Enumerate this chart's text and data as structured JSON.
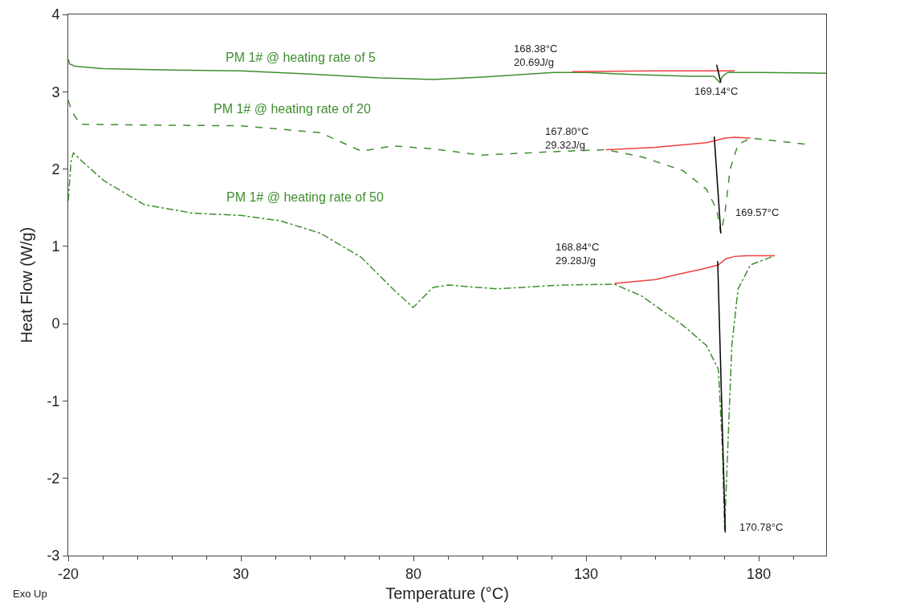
{
  "chart_data": {
    "type": "line",
    "xlabel": "Temperature (°C)",
    "ylabel": "Heat Flow (W/g)",
    "xlim": [
      -20,
      199.5
    ],
    "xticks": [
      -20,
      30,
      80,
      130,
      180
    ],
    "ylim": [
      -3,
      4
    ],
    "yticks": [
      -3,
      -2,
      -1,
      0,
      1,
      2,
      3,
      4
    ],
    "grid": false,
    "legend": false,
    "series": [
      {
        "name": "PM 1# @ heating rate of 5",
        "color": "#3f8f2f",
        "line_style": "solid",
        "x": [
          -20,
          -19.6,
          -18,
          -10,
          10,
          30,
          50,
          70,
          85.7,
          100,
          120.6,
          130,
          145,
          160,
          167,
          168.7,
          169.5,
          171,
          180,
          199.5
        ],
        "values": [
          3.42,
          3.36,
          3.33,
          3.3,
          3.28,
          3.27,
          3.23,
          3.18,
          3.16,
          3.19,
          3.25,
          3.25,
          3.22,
          3.2,
          3.2,
          3.12,
          3.2,
          3.25,
          3.25,
          3.24
        ]
      },
      {
        "name": "PM 1# @ heating rate of 20",
        "color": "#3f8f2f",
        "line_style": "dashed",
        "x": [
          -20,
          -19,
          -16.6,
          0,
          30,
          53,
          65,
          74,
          86,
          99.6,
          123,
          135.7,
          146,
          158,
          164.8,
          167.8,
          169,
          170.2,
          171.7,
          174,
          177.6,
          184,
          193.8
        ],
        "values": [
          2.89,
          2.75,
          2.58,
          2.57,
          2.56,
          2.47,
          2.23,
          2.3,
          2.26,
          2.18,
          2.23,
          2.25,
          2.16,
          1.98,
          1.74,
          1.48,
          1.17,
          1.43,
          2,
          2.32,
          2.4,
          2.37,
          2.32
        ]
      },
      {
        "name": "PM 1# @ heating rate of 50",
        "color": "#3f8f2f",
        "line_style": "dashdot",
        "x": [
          -20,
          -19.2,
          -18.5,
          -16,
          -9.7,
          2,
          16,
          30,
          41.5,
          53,
          64.8,
          74,
          79.9,
          85.7,
          90.3,
          104,
          123,
          138.2,
          146,
          158,
          164.8,
          168.3,
          169.5,
          170.1,
          171,
          172.2,
          174,
          177.6,
          184.6
        ],
        "values": [
          1.59,
          2.1,
          2.21,
          2.1,
          1.85,
          1.54,
          1.43,
          1.4,
          1.33,
          1.17,
          0.86,
          0.45,
          0.21,
          0.47,
          0.5,
          0.45,
          0.5,
          0.51,
          0.36,
          -0.02,
          -0.28,
          -0.59,
          -1.63,
          -2.67,
          -1.63,
          -0.28,
          0.45,
          0.76,
          0.88
        ]
      },
      {
        "color": "#f04040",
        "line_style": "solid",
        "x": [
          126,
          150,
          168,
          173
        ],
        "values": [
          3.26,
          3.27,
          3.27,
          3.27
        ]
      },
      {
        "color": "#f04040",
        "line_style": "solid",
        "x": [
          135.7,
          150,
          164.8,
          167.5,
          170.2,
          173,
          177.6
        ],
        "values": [
          2.25,
          2.28,
          2.34,
          2.37,
          2.4,
          2.41,
          2.4
        ]
      },
      {
        "color": "#f04040",
        "line_style": "solid",
        "x": [
          138.2,
          150,
          157.8,
          164,
          168.3,
          170.5,
          173,
          176.4,
          184.6
        ],
        "values": [
          0.52,
          0.57,
          0.65,
          0.71,
          0.76,
          0.84,
          0.87,
          0.88,
          0.88
        ]
      },
      {
        "color": "#000000",
        "line_style": "solid",
        "x": [
          167.8,
          169
        ],
        "values": [
          3.35,
          3.12
        ]
      },
      {
        "color": "#000000",
        "line_style": "solid",
        "x": [
          167.1,
          169
        ],
        "values": [
          2.42,
          1.17
        ]
      },
      {
        "color": "#000000",
        "line_style": "solid",
        "x": [
          168.1,
          170.3
        ],
        "values": [
          0.81,
          -2.7
        ]
      }
    ],
    "annotations": [
      "168.38°C\n20.69J/g",
      "169.14°C",
      "167.80°C\n29.32J/g",
      "169.57°C",
      "168.84°C\n29.28J/g",
      "170.78°C",
      "Exo Up"
    ]
  }
}
